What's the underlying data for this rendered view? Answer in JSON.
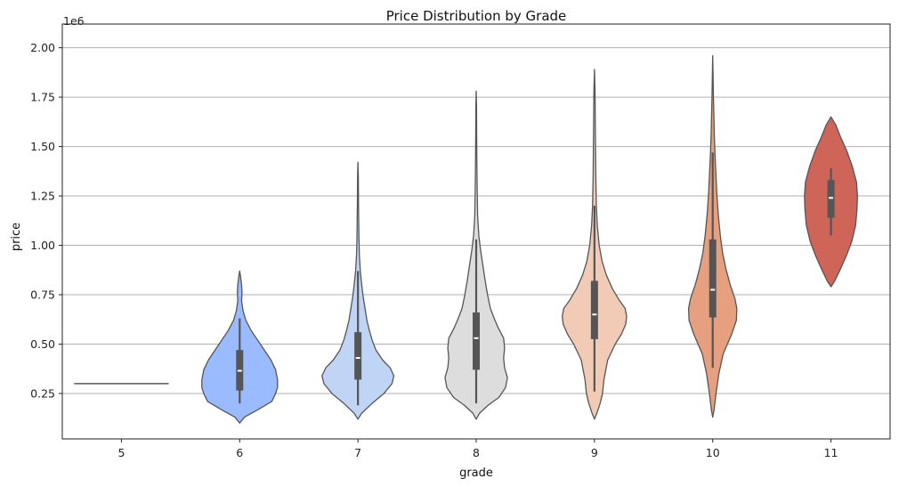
{
  "chart_data": {
    "type": "violin",
    "title": "Price Distribution by Grade",
    "xlabel": "grade",
    "ylabel": "price",
    "y_offset_label": "1e6",
    "ylim": [
      0.02,
      2.12
    ],
    "yticks": [
      0.25,
      0.5,
      0.75,
      1.0,
      1.25,
      1.5,
      1.75,
      2.0
    ],
    "ytick_labels": [
      "0.25",
      "0.50",
      "0.75",
      "1.00",
      "1.25",
      "1.50",
      "1.75",
      "2.00"
    ],
    "grid": "y",
    "categories": [
      "5",
      "6",
      "7",
      "8",
      "9",
      "10",
      "11"
    ],
    "colors": [
      "#7b9ff9",
      "#9abbff",
      "#c0d4f5",
      "#dddddd",
      "#f2cbb7",
      "#e7a07f",
      "#cf6558"
    ],
    "edge_color": "#555555",
    "series": [
      {
        "grade": "5",
        "color": "#7b9ff9",
        "single_value": 0.3,
        "profile": []
      },
      {
        "grade": "6",
        "color": "#9abbff",
        "q1": 0.265,
        "median": 0.365,
        "q3": 0.47,
        "whisker_low": 0.2,
        "whisker_high": 0.63,
        "profile": [
          [
            0.1,
            0.0
          ],
          [
            0.13,
            0.1
          ],
          [
            0.17,
            0.4
          ],
          [
            0.21,
            0.68
          ],
          [
            0.25,
            0.76
          ],
          [
            0.28,
            0.8
          ],
          [
            0.32,
            0.8
          ],
          [
            0.37,
            0.76
          ],
          [
            0.42,
            0.66
          ],
          [
            0.47,
            0.52
          ],
          [
            0.52,
            0.38
          ],
          [
            0.57,
            0.24
          ],
          [
            0.62,
            0.13
          ],
          [
            0.67,
            0.07
          ],
          [
            0.72,
            0.04
          ],
          [
            0.76,
            0.05
          ],
          [
            0.8,
            0.04
          ],
          [
            0.84,
            0.02
          ],
          [
            0.87,
            0.0
          ]
        ]
      },
      {
        "grade": "7",
        "color": "#c0d4f5",
        "q1": 0.32,
        "median": 0.43,
        "q3": 0.56,
        "whisker_low": 0.19,
        "whisker_high": 0.87,
        "profile": [
          [
            0.12,
            0.0
          ],
          [
            0.15,
            0.08
          ],
          [
            0.2,
            0.3
          ],
          [
            0.25,
            0.55
          ],
          [
            0.3,
            0.72
          ],
          [
            0.34,
            0.76
          ],
          [
            0.38,
            0.68
          ],
          [
            0.42,
            0.52
          ],
          [
            0.47,
            0.38
          ],
          [
            0.52,
            0.3
          ],
          [
            0.57,
            0.24
          ],
          [
            0.62,
            0.19
          ],
          [
            0.68,
            0.15
          ],
          [
            0.74,
            0.11
          ],
          [
            0.8,
            0.08
          ],
          [
            0.87,
            0.05
          ],
          [
            0.95,
            0.03
          ],
          [
            1.05,
            0.02
          ],
          [
            1.2,
            0.012
          ],
          [
            1.35,
            0.008
          ],
          [
            1.42,
            0.0
          ]
        ]
      },
      {
        "grade": "8",
        "color": "#dddddd",
        "q1": 0.37,
        "median": 0.53,
        "q3": 0.66,
        "whisker_low": 0.2,
        "whisker_high": 1.03,
        "profile": [
          [
            0.12,
            0.0
          ],
          [
            0.15,
            0.07
          ],
          [
            0.19,
            0.25
          ],
          [
            0.23,
            0.48
          ],
          [
            0.28,
            0.62
          ],
          [
            0.33,
            0.66
          ],
          [
            0.38,
            0.6
          ],
          [
            0.43,
            0.58
          ],
          [
            0.48,
            0.6
          ],
          [
            0.53,
            0.58
          ],
          [
            0.58,
            0.47
          ],
          [
            0.63,
            0.38
          ],
          [
            0.68,
            0.3
          ],
          [
            0.75,
            0.24
          ],
          [
            0.82,
            0.19
          ],
          [
            0.9,
            0.14
          ],
          [
            0.98,
            0.09
          ],
          [
            1.05,
            0.055
          ],
          [
            1.15,
            0.03
          ],
          [
            1.3,
            0.02
          ],
          [
            1.4,
            0.015
          ],
          [
            1.55,
            0.01
          ],
          [
            1.7,
            0.007
          ],
          [
            1.78,
            0.0
          ]
        ]
      },
      {
        "grade": "9",
        "color": "#f2cbb7",
        "q1": 0.525,
        "median": 0.65,
        "q3": 0.82,
        "whisker_low": 0.26,
        "whisker_high": 1.2,
        "profile": [
          [
            0.12,
            0.0
          ],
          [
            0.15,
            0.05
          ],
          [
            0.2,
            0.12
          ],
          [
            0.25,
            0.17
          ],
          [
            0.32,
            0.2
          ],
          [
            0.42,
            0.28
          ],
          [
            0.5,
            0.44
          ],
          [
            0.55,
            0.57
          ],
          [
            0.6,
            0.66
          ],
          [
            0.64,
            0.68
          ],
          [
            0.68,
            0.65
          ],
          [
            0.72,
            0.53
          ],
          [
            0.78,
            0.38
          ],
          [
            0.85,
            0.25
          ],
          [
            0.92,
            0.16
          ],
          [
            1.0,
            0.1
          ],
          [
            1.1,
            0.06
          ],
          [
            1.2,
            0.04
          ],
          [
            1.35,
            0.028
          ],
          [
            1.55,
            0.02
          ],
          [
            1.7,
            0.015
          ],
          [
            1.8,
            0.01
          ],
          [
            1.89,
            0.0
          ]
        ]
      },
      {
        "grade": "10",
        "color": "#e7a07f",
        "q1": 0.635,
        "median": 0.775,
        "q3": 1.03,
        "whisker_low": 0.38,
        "whisker_high": 1.47,
        "profile": [
          [
            0.13,
            0.0
          ],
          [
            0.17,
            0.03
          ],
          [
            0.25,
            0.07
          ],
          [
            0.35,
            0.13
          ],
          [
            0.45,
            0.22
          ],
          [
            0.55,
            0.4
          ],
          [
            0.62,
            0.5
          ],
          [
            0.68,
            0.51
          ],
          [
            0.73,
            0.47
          ],
          [
            0.8,
            0.37
          ],
          [
            0.88,
            0.28
          ],
          [
            0.96,
            0.21
          ],
          [
            1.05,
            0.16
          ],
          [
            1.15,
            0.12
          ],
          [
            1.25,
            0.09
          ],
          [
            1.35,
            0.07
          ],
          [
            1.45,
            0.05
          ],
          [
            1.55,
            0.035
          ],
          [
            1.65,
            0.025
          ],
          [
            1.75,
            0.015
          ],
          [
            1.85,
            0.008
          ],
          [
            1.96,
            0.0
          ]
        ]
      },
      {
        "grade": "11",
        "color": "#cf6558",
        "q1": 1.14,
        "median": 1.24,
        "q3": 1.33,
        "whisker_low": 1.05,
        "whisker_high": 1.39,
        "profile": [
          [
            0.79,
            0.0
          ],
          [
            0.82,
            0.08
          ],
          [
            0.88,
            0.2
          ],
          [
            0.95,
            0.33
          ],
          [
            1.02,
            0.44
          ],
          [
            1.1,
            0.52
          ],
          [
            1.18,
            0.55
          ],
          [
            1.25,
            0.56
          ],
          [
            1.32,
            0.54
          ],
          [
            1.4,
            0.45
          ],
          [
            1.48,
            0.33
          ],
          [
            1.55,
            0.2
          ],
          [
            1.61,
            0.1
          ],
          [
            1.65,
            0.0
          ]
        ]
      }
    ]
  }
}
